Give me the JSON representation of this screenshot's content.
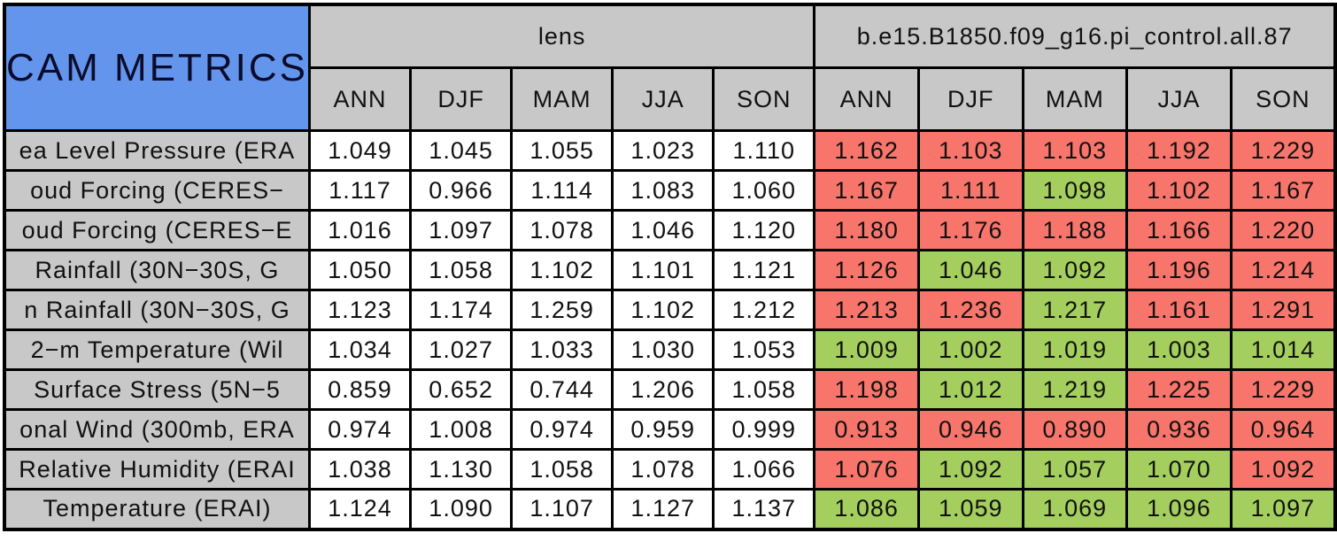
{
  "colors": {
    "title_bg": "#6495ED",
    "header_bg": "#C8C8C8",
    "worse_red": "#F8756C",
    "better_green": "#A4CE5E",
    "cell_white": "#FFFFFF",
    "border": "#000000"
  },
  "chart_data": {
    "type": "table",
    "title": "CAM METRICS",
    "column_groups": [
      {
        "label": "lens",
        "seasons": [
          "ANN",
          "DJF",
          "MAM",
          "JJA",
          "SON"
        ]
      },
      {
        "label": "b.e15.B1850.f09_g16.pi_control.all.87",
        "seasons": [
          "ANN",
          "DJF",
          "MAM",
          "JJA",
          "SON"
        ]
      }
    ],
    "cell_color_meaning": {
      "white": "lens baseline values",
      "red": "red-highlighted control value",
      "green": "green-highlighted control value"
    },
    "rows": [
      {
        "label": "ea Level Pressure (ERA",
        "lens": [
          "1.049",
          "1.045",
          "1.055",
          "1.023",
          "1.110"
        ],
        "control": [
          "1.162",
          "1.103",
          "1.103",
          "1.192",
          "1.229"
        ],
        "control_cell_colors": [
          "red",
          "red",
          "red",
          "red",
          "red"
        ]
      },
      {
        "label": "oud Forcing (CERES−",
        "lens": [
          "1.117",
          "0.966",
          "1.114",
          "1.083",
          "1.060"
        ],
        "control": [
          "1.167",
          "1.111",
          "1.098",
          "1.102",
          "1.167"
        ],
        "control_cell_colors": [
          "red",
          "red",
          "green",
          "red",
          "red"
        ]
      },
      {
        "label": "oud Forcing (CERES−E",
        "lens": [
          "1.016",
          "1.097",
          "1.078",
          "1.046",
          "1.120"
        ],
        "control": [
          "1.180",
          "1.176",
          "1.188",
          "1.166",
          "1.220"
        ],
        "control_cell_colors": [
          "red",
          "red",
          "red",
          "red",
          "red"
        ]
      },
      {
        "label": "Rainfall (30N−30S, G",
        "lens": [
          "1.050",
          "1.058",
          "1.102",
          "1.101",
          "1.121"
        ],
        "control": [
          "1.126",
          "1.046",
          "1.092",
          "1.196",
          "1.214"
        ],
        "control_cell_colors": [
          "red",
          "green",
          "green",
          "red",
          "red"
        ]
      },
      {
        "label": "n Rainfall (30N−30S, G",
        "lens": [
          "1.123",
          "1.174",
          "1.259",
          "1.102",
          "1.212"
        ],
        "control": [
          "1.213",
          "1.236",
          "1.217",
          "1.161",
          "1.291"
        ],
        "control_cell_colors": [
          "red",
          "red",
          "green",
          "red",
          "red"
        ]
      },
      {
        "label": "2−m Temperature (Wil",
        "lens": [
          "1.034",
          "1.027",
          "1.033",
          "1.030",
          "1.053"
        ],
        "control": [
          "1.009",
          "1.002",
          "1.019",
          "1.003",
          "1.014"
        ],
        "control_cell_colors": [
          "green",
          "green",
          "green",
          "green",
          "green"
        ]
      },
      {
        "label": "Surface Stress (5N−5",
        "lens": [
          "0.859",
          "0.652",
          "0.744",
          "1.206",
          "1.058"
        ],
        "control": [
          "1.198",
          "1.012",
          "1.219",
          "1.225",
          "1.229"
        ],
        "control_cell_colors": [
          "red",
          "green",
          "green",
          "red",
          "red"
        ]
      },
      {
        "label": "onal Wind (300mb, ERA",
        "lens": [
          "0.974",
          "1.008",
          "0.974",
          "0.959",
          "0.999"
        ],
        "control": [
          "0.913",
          "0.946",
          "0.890",
          "0.936",
          "0.964"
        ],
        "control_cell_colors": [
          "red",
          "red",
          "red",
          "red",
          "red"
        ]
      },
      {
        "label": "Relative Humidity (ERAI",
        "lens": [
          "1.038",
          "1.130",
          "1.058",
          "1.078",
          "1.066"
        ],
        "control": [
          "1.076",
          "1.092",
          "1.057",
          "1.070",
          "1.092"
        ],
        "control_cell_colors": [
          "red",
          "green",
          "green",
          "green",
          "red"
        ]
      },
      {
        "label": "Temperature (ERAI)",
        "lens": [
          "1.124",
          "1.090",
          "1.107",
          "1.127",
          "1.137"
        ],
        "control": [
          "1.086",
          "1.059",
          "1.069",
          "1.096",
          "1.097"
        ],
        "control_cell_colors": [
          "green",
          "green",
          "green",
          "green",
          "green"
        ]
      }
    ]
  }
}
